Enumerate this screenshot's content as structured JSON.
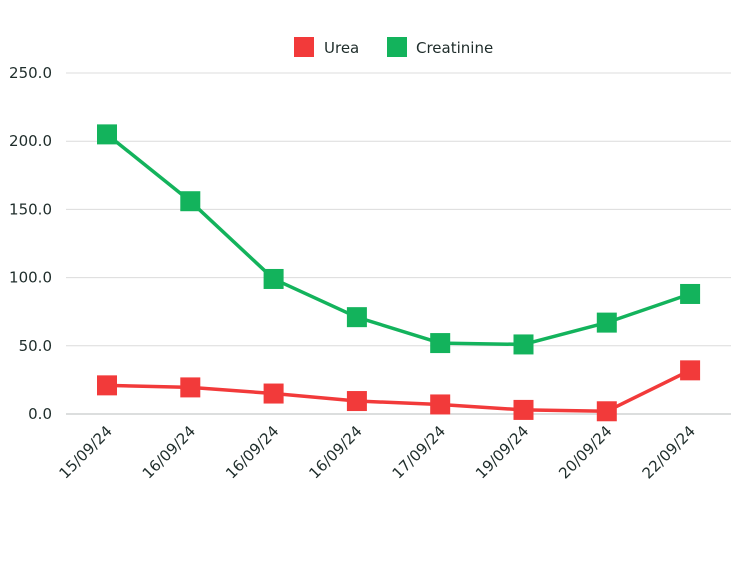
{
  "chart_data": {
    "type": "line",
    "title": "",
    "xlabel": "",
    "ylabel": "",
    "categories": [
      "15/09/24",
      "16/09/24",
      "16/09/24",
      "16/09/24",
      "17/09/24",
      "19/09/24",
      "20/09/24",
      "22/09/24"
    ],
    "ylim": [
      0,
      250
    ],
    "yticks": [
      "0.0",
      "50.0",
      "100.0",
      "150.0",
      "200.0",
      "250.0"
    ],
    "grid": true,
    "legend_position": "top-center",
    "series": [
      {
        "name": "Urea",
        "color": "#f23a3a",
        "values": [
          21,
          19.5,
          15,
          9.5,
          7,
          3,
          2,
          32
        ]
      },
      {
        "name": "Creatinine",
        "color": "#13b35c",
        "values": [
          205,
          156,
          99,
          71,
          52,
          51,
          67,
          88
        ]
      }
    ]
  }
}
